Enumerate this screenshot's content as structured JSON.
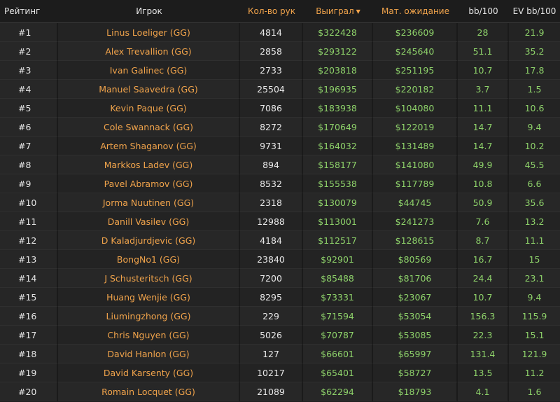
{
  "headers": {
    "rank": "Рейтинг",
    "player": "Игрок",
    "hands": "Кол-во рук",
    "won": "Выиграл",
    "won_sort_icon": "▼",
    "ev": "Мат. ожидание",
    "bb100": "bb/100",
    "evbb100": "EV bb/100"
  },
  "rows": [
    {
      "rank": "#1",
      "player": "Linus Loeliger (GG)",
      "hands": "4814",
      "won": "$322428",
      "ev": "$236609",
      "bb": "28",
      "evbb": "21.9"
    },
    {
      "rank": "#2",
      "player": "Alex Trevallion (GG)",
      "hands": "2858",
      "won": "$293122",
      "ev": "$245640",
      "bb": "51.1",
      "evbb": "35.2"
    },
    {
      "rank": "#3",
      "player": "Ivan Galinec (GG)",
      "hands": "2733",
      "won": "$203818",
      "ev": "$251195",
      "bb": "10.7",
      "evbb": "17.8"
    },
    {
      "rank": "#4",
      "player": "Manuel Saavedra (GG)",
      "hands": "25504",
      "won": "$196935",
      "ev": "$220182",
      "bb": "3.7",
      "evbb": "1.5"
    },
    {
      "rank": "#5",
      "player": "Kevin Paque (GG)",
      "hands": "7086",
      "won": "$183938",
      "ev": "$104080",
      "bb": "11.1",
      "evbb": "10.6"
    },
    {
      "rank": "#6",
      "player": "Cole Swannack (GG)",
      "hands": "8272",
      "won": "$170649",
      "ev": "$122019",
      "bb": "14.7",
      "evbb": "9.4"
    },
    {
      "rank": "#7",
      "player": "Artem Shaganov (GG)",
      "hands": "9731",
      "won": "$164032",
      "ev": "$131489",
      "bb": "14.7",
      "evbb": "10.2"
    },
    {
      "rank": "#8",
      "player": "Markkos Ladev (GG)",
      "hands": "894",
      "won": "$158177",
      "ev": "$141080",
      "bb": "49.9",
      "evbb": "45.5"
    },
    {
      "rank": "#9",
      "player": "Pavel Abramov (GG)",
      "hands": "8532",
      "won": "$155538",
      "ev": "$117789",
      "bb": "10.8",
      "evbb": "6.6"
    },
    {
      "rank": "#10",
      "player": "Jorma Nuutinen (GG)",
      "hands": "2318",
      "won": "$130079",
      "ev": "$44745",
      "bb": "50.9",
      "evbb": "35.6"
    },
    {
      "rank": "#11",
      "player": "Danill Vasilev (GG)",
      "hands": "12988",
      "won": "$113001",
      "ev": "$241273",
      "bb": "7.6",
      "evbb": "13.2"
    },
    {
      "rank": "#12",
      "player": "D Kaladjurdjevic (GG)",
      "hands": "4184",
      "won": "$112517",
      "ev": "$128615",
      "bb": "8.7",
      "evbb": "11.1"
    },
    {
      "rank": "#13",
      "player": "BongNo1 (GG)",
      "hands": "23840",
      "won": "$92901",
      "ev": "$80569",
      "bb": "16.7",
      "evbb": "15"
    },
    {
      "rank": "#14",
      "player": "J Schusteritsch (GG)",
      "hands": "7200",
      "won": "$85488",
      "ev": "$81706",
      "bb": "24.4",
      "evbb": "23.1"
    },
    {
      "rank": "#15",
      "player": "Huang Wenjie (GG)",
      "hands": "8295",
      "won": "$73331",
      "ev": "$23067",
      "bb": "10.7",
      "evbb": "9.4"
    },
    {
      "rank": "#16",
      "player": "Liumingzhong (GG)",
      "hands": "229",
      "won": "$71594",
      "ev": "$53054",
      "bb": "156.3",
      "evbb": "115.9"
    },
    {
      "rank": "#17",
      "player": "Chris Nguyen (GG)",
      "hands": "5026",
      "won": "$70787",
      "ev": "$53085",
      "bb": "22.3",
      "evbb": "15.1"
    },
    {
      "rank": "#18",
      "player": "David Hanlon (GG)",
      "hands": "127",
      "won": "$66601",
      "ev": "$65997",
      "bb": "131.4",
      "evbb": "121.9"
    },
    {
      "rank": "#19",
      "player": "David Karsenty (GG)",
      "hands": "10217",
      "won": "$65401",
      "ev": "$58727",
      "bb": "13.5",
      "evbb": "11.2"
    },
    {
      "rank": "#20",
      "player": "Romain Locquet (GG)",
      "hands": "21089",
      "won": "$62294",
      "ev": "$18793",
      "bb": "4.1",
      "evbb": "1.6"
    }
  ],
  "colors": {
    "background": "#1f1f1f",
    "player_name": "#f0a34b",
    "money_positive": "#8ed26a",
    "header_highlight": "#f0a34b"
  }
}
